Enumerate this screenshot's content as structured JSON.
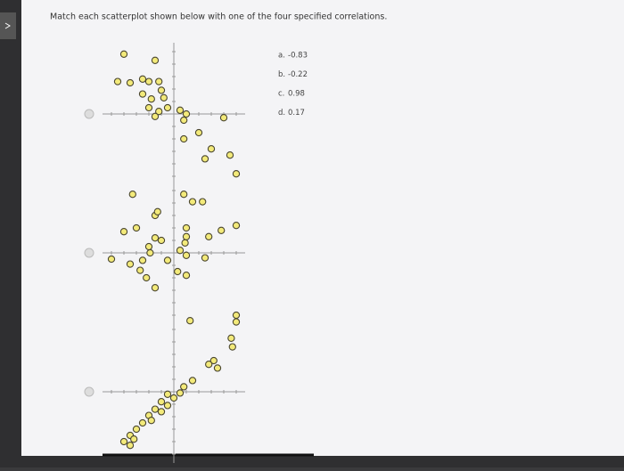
{
  "prompt": "Match each scatterplot shown below with one of the four specified correlations.",
  "plots": [
    {
      "x": [
        -4,
        -1.5,
        -4.5,
        -3.5,
        -2.5,
        -2,
        -1.2,
        -1,
        -2.5,
        -1.8,
        -0.8,
        -2,
        -1.2,
        -0.5,
        0.5,
        1,
        0.8,
        -1.5,
        4,
        0.8,
        2,
        2.5,
        4.5,
        5,
        3
      ],
      "y": [
        4.8,
        4.3,
        2.6,
        2.5,
        2.8,
        2.6,
        2.6,
        1.9,
        1.6,
        1.2,
        1.3,
        0.5,
        0.2,
        0.5,
        0.3,
        0,
        -0.5,
        -0.2,
        -0.3,
        -2,
        -1.5,
        -3.6,
        -3.3,
        -4.8,
        -2.8
      ]
    },
    {
      "x": [
        -3.3,
        0.8,
        1.5,
        2.3,
        -1.5,
        -1.3,
        -3,
        -4,
        -1.5,
        -1,
        1,
        1,
        0.9,
        2.8,
        3.8,
        5,
        -2,
        -1.9,
        0.5,
        1,
        2.5,
        -5,
        -3.5,
        -2.5,
        -2.7,
        -2.2,
        -0.5,
        0.3,
        1,
        -1.5,
        5
      ],
      "y": [
        4.7,
        4.7,
        4.1,
        4.1,
        3,
        3.3,
        2,
        1.7,
        1.2,
        1,
        2,
        1.3,
        0.8,
        1.3,
        1.8,
        2.2,
        0.5,
        0,
        0.2,
        -0.2,
        -0.4,
        -0.5,
        -0.9,
        -0.6,
        -1.4,
        -2,
        -0.6,
        -1.5,
        -1.8,
        -2.8,
        -5
      ]
    },
    {
      "x": [
        1.3,
        5,
        4.6,
        4.7,
        3.2,
        2.8,
        3.5,
        1.5,
        0.8,
        0.5,
        -0.5,
        0,
        -1,
        -0.5,
        -1.5,
        -1,
        -2,
        -1.8,
        -2.5,
        -3,
        -3.5,
        -3.2,
        -4,
        -3.5
      ],
      "y": [
        5.7,
        5.6,
        4.3,
        3.6,
        2.5,
        2.2,
        1.9,
        0.9,
        0.4,
        -0.1,
        -0.2,
        -0.5,
        -0.8,
        -1.1,
        -1.4,
        -1.6,
        -1.9,
        -2.3,
        -2.5,
        -3,
        -3.5,
        -3.8,
        -4,
        -4.3
      ]
    }
  ],
  "options": [
    {
      "letter": "a.",
      "value": -0.83
    },
    {
      "letter": "b.",
      "value": -0.22
    },
    {
      "letter": "c.",
      "value": 0.98
    },
    {
      "letter": "d.",
      "value": 0.17
    }
  ]
}
